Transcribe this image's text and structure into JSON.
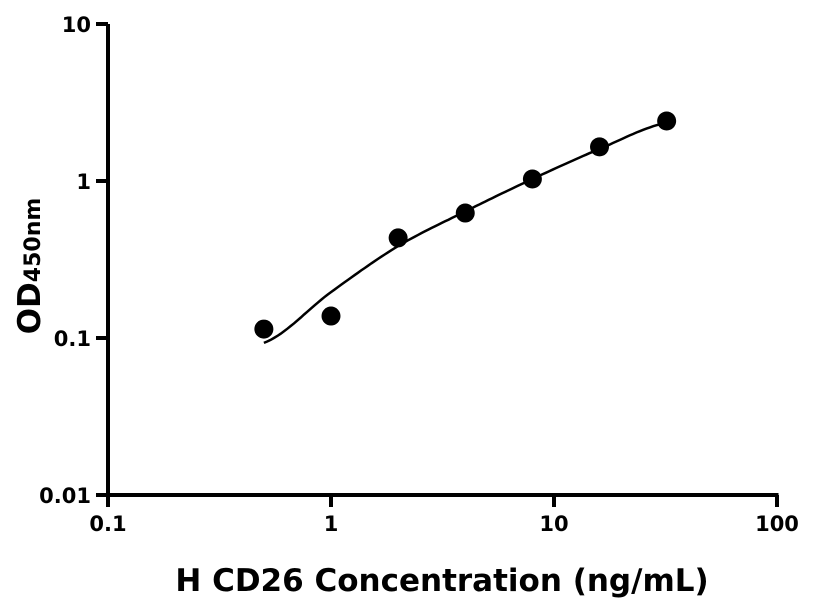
{
  "chart_data": {
    "type": "scatter",
    "title": "",
    "xlabel": "H CD26 Concentration (ng/mL)",
    "ylabel": "OD",
    "ylabel_subscript": "450nm",
    "xscale": "log",
    "yscale": "log",
    "xlim": [
      0.1,
      100
    ],
    "ylim": [
      0.01,
      10
    ],
    "xticks": [
      0.1,
      1,
      10,
      100
    ],
    "xtick_labels": [
      "0.1",
      "1",
      "10",
      "100"
    ],
    "yticks": [
      0.01,
      0.1,
      1,
      10
    ],
    "ytick_labels": [
      "0.01",
      "0.1",
      "1",
      "10"
    ],
    "grid": false,
    "series": [
      {
        "type": "scatter",
        "x": [
          0.5,
          1,
          2,
          4,
          8,
          16,
          32
        ],
        "y": [
          0.114,
          0.138,
          0.434,
          0.625,
          1.03,
          1.65,
          2.41
        ],
        "color": "#000000"
      },
      {
        "type": "line",
        "x": [
          0.5,
          1,
          2,
          4,
          8,
          16,
          32
        ],
        "y": [
          0.093,
          0.196,
          0.385,
          0.64,
          1.03,
          1.6,
          2.35
        ],
        "color": "#000000"
      }
    ]
  }
}
